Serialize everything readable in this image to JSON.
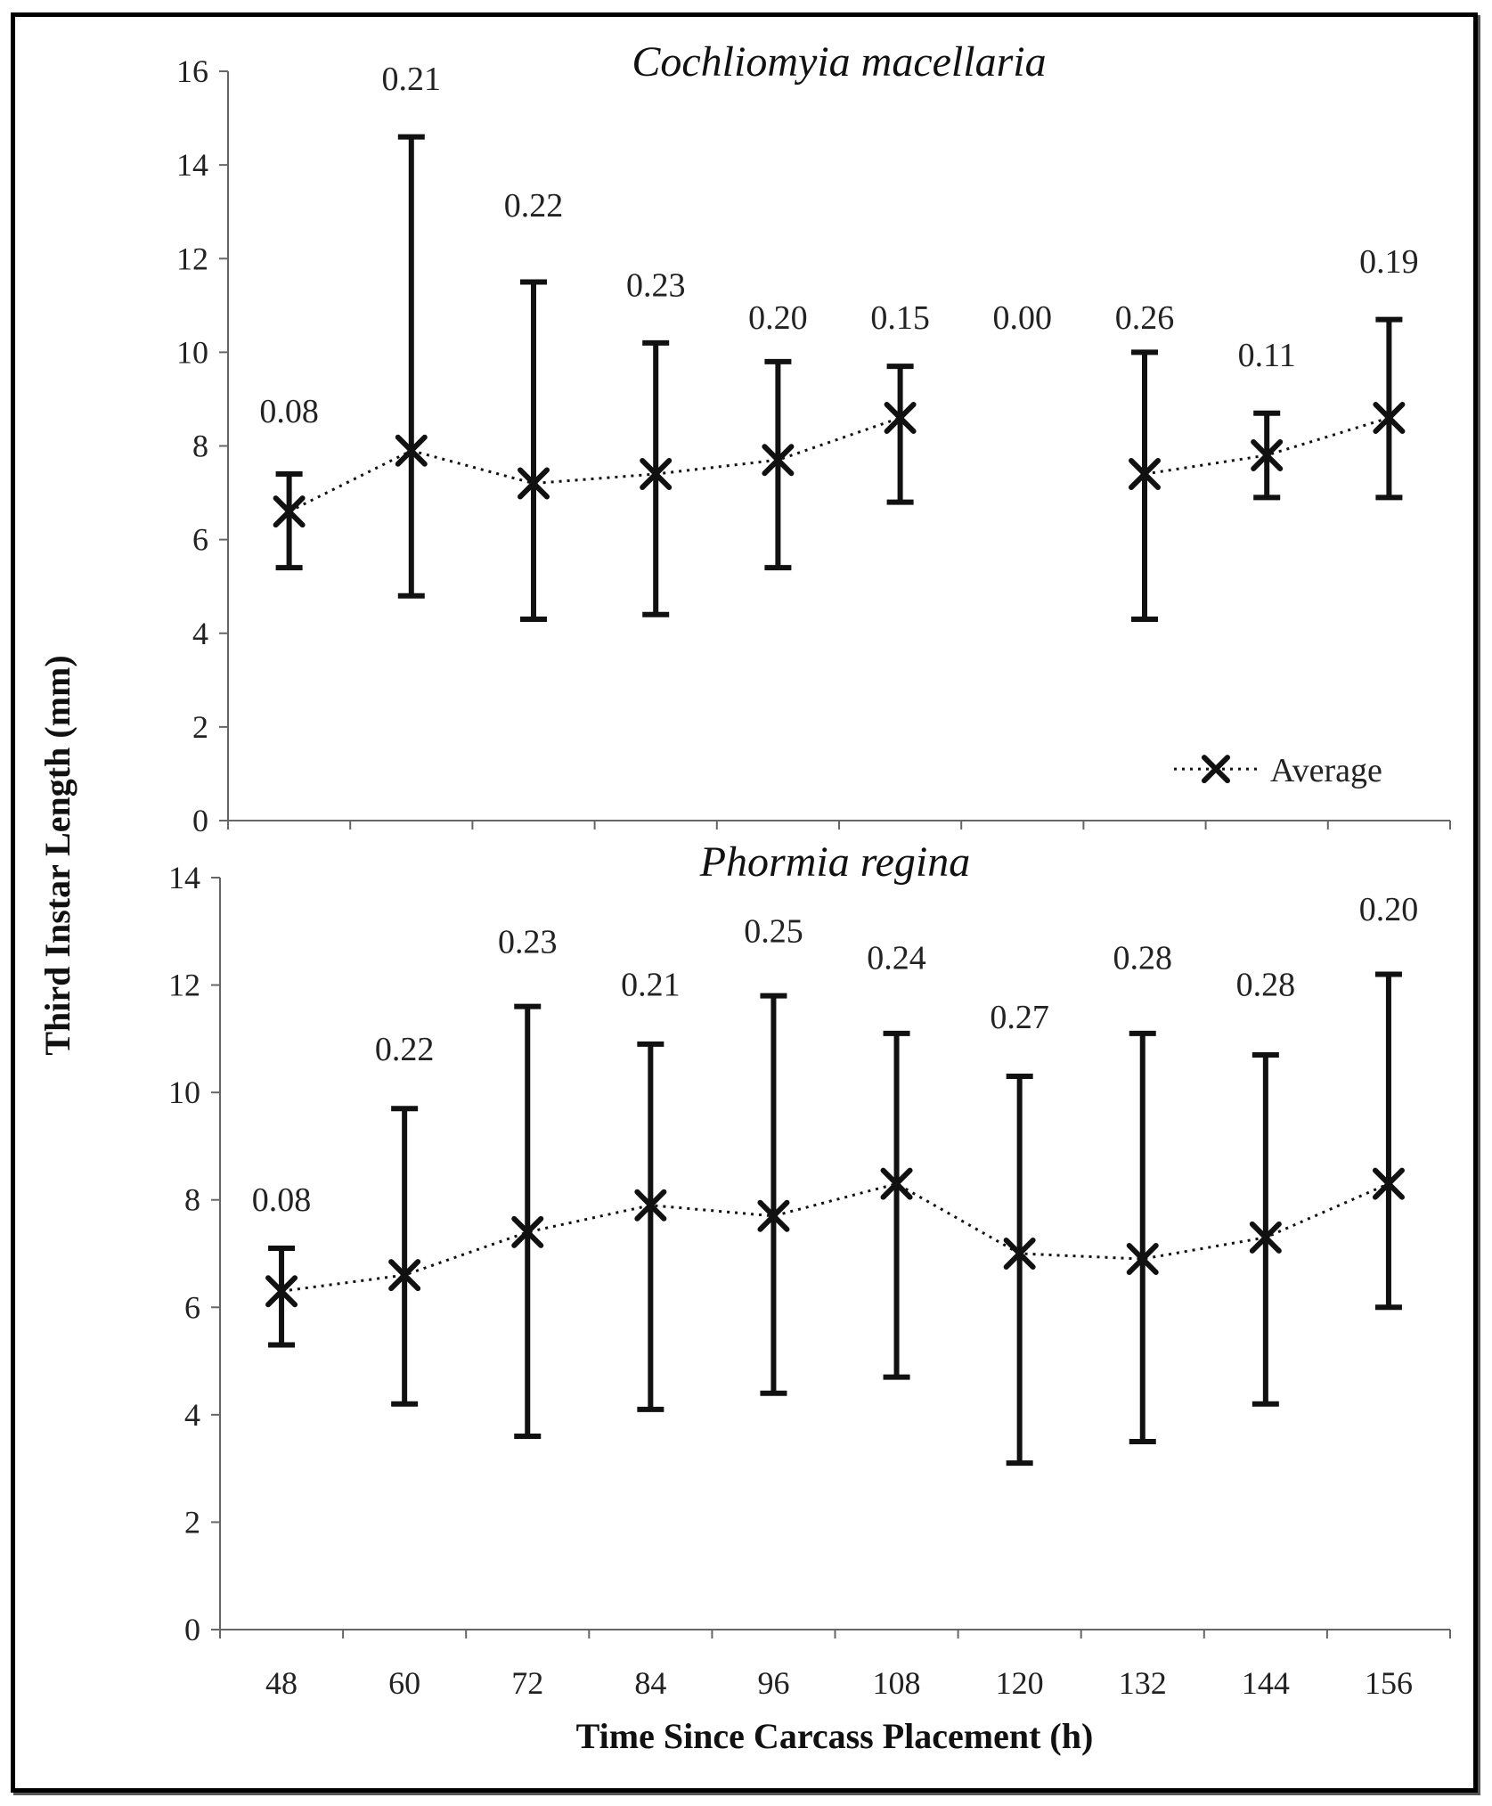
{
  "chart_data": [
    {
      "type": "line",
      "title": "Cochliomyia macellaria",
      "xlabel": "Time Since Carcass Placement (h)",
      "ylabel": "Third Instar Length (mm)",
      "ylim": [
        0,
        16
      ],
      "yticks": [
        "0",
        "2",
        "4",
        "6",
        "8",
        "10",
        "12",
        "14",
        "16"
      ],
      "categories": [
        "48",
        "60",
        "72",
        "84",
        "96",
        "108",
        "120",
        "132",
        "144",
        "156"
      ],
      "series": [
        {
          "name": "Average",
          "values": [
            6.6,
            7.9,
            7.2,
            7.4,
            7.7,
            8.6,
            null,
            7.4,
            7.8,
            8.6
          ],
          "err_low": [
            5.4,
            4.8,
            4.3,
            4.4,
            5.4,
            6.8,
            null,
            4.3,
            6.9,
            6.9
          ],
          "err_high": [
            7.4,
            14.6,
            11.5,
            10.2,
            9.8,
            9.7,
            null,
            10.0,
            8.7,
            10.7
          ],
          "labels": [
            "0.08",
            "0.21",
            "0.22",
            "0.23",
            "0.20",
            "0.15",
            "0.00",
            "0.26",
            "0.11",
            "0.19"
          ],
          "label_values": [
            8.5,
            15.6,
            12.9,
            11.2,
            10.5,
            10.5,
            10.5,
            10.5,
            9.7,
            11.7
          ]
        }
      ],
      "legend": {
        "position": "bottom-right",
        "entries": [
          "Average"
        ]
      }
    },
    {
      "type": "line",
      "title": "Phormia regina",
      "xlabel": "Time Since Carcass Placement (h)",
      "ylabel": "Third Instar Length (mm)",
      "ylim": [
        0,
        14
      ],
      "yticks": [
        "0",
        "2",
        "4",
        "6",
        "8",
        "10",
        "12",
        "14"
      ],
      "categories": [
        "48",
        "60",
        "72",
        "84",
        "96",
        "108",
        "120",
        "132",
        "144",
        "156"
      ],
      "series": [
        {
          "name": "Average",
          "values": [
            6.3,
            6.6,
            7.4,
            7.9,
            7.7,
            8.3,
            7.0,
            6.9,
            7.3,
            8.3
          ],
          "err_low": [
            5.3,
            4.2,
            3.6,
            4.1,
            4.4,
            4.7,
            3.1,
            3.5,
            4.2,
            6.0
          ],
          "err_high": [
            7.1,
            9.7,
            11.6,
            10.9,
            11.8,
            11.1,
            10.3,
            11.1,
            10.7,
            12.2
          ],
          "labels": [
            "0.08",
            "0.22",
            "0.23",
            "0.21",
            "0.25",
            "0.24",
            "0.27",
            "0.28",
            "0.28",
            "0.20"
          ],
          "label_values": [
            7.8,
            10.6,
            12.6,
            11.8,
            12.8,
            12.3,
            11.2,
            12.3,
            11.8,
            13.2
          ]
        }
      ]
    }
  ]
}
